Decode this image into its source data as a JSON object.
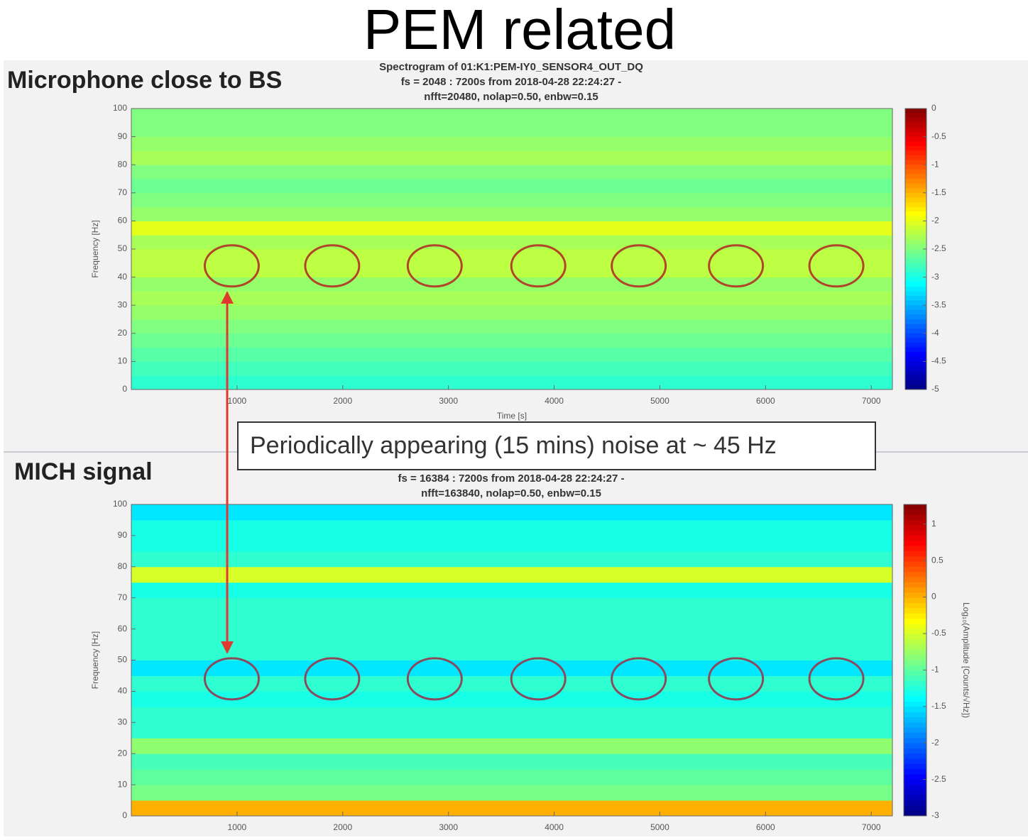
{
  "slide_title": "PEM related",
  "annotation": "Periodically appearing (15 mins) noise at ~ 45 Hz",
  "chart_data": [
    {
      "type": "heatmap",
      "panel_label": "Microphone close to BS",
      "title": [
        "Spectrogram of 01:K1:PEM-IY0_SENSOR4_OUT_DQ",
        "fs = 2048 : 7200s from 2018-04-28 22:24:27 -",
        "nfft=20480, nolap=0.50, enbw=0.15"
      ],
      "xlabel": "Time [s]",
      "ylabel": "Frequency [Hz]",
      "xlim": [
        0,
        7200
      ],
      "xticks": [
        1000,
        2000,
        3000,
        4000,
        5000,
        6000,
        7000
      ],
      "ylim": [
        0,
        100
      ],
      "yticks": [
        0,
        10,
        20,
        30,
        40,
        50,
        60,
        70,
        80,
        90,
        100
      ],
      "freq_bins": [
        0,
        5,
        10,
        15,
        20,
        25,
        30,
        35,
        40,
        45,
        50,
        55,
        60,
        65,
        70,
        75,
        80,
        85,
        90,
        95,
        100
      ],
      "values": [
        -2.9,
        -2.8,
        -2.7,
        -2.6,
        -2.5,
        -2.4,
        -2.3,
        -2.4,
        -2.2,
        -2.2,
        -2.3,
        -2.0,
        -2.4,
        -2.5,
        -2.6,
        -2.5,
        -2.3,
        -2.4,
        -2.5,
        -2.5
      ],
      "clim": [
        -5,
        0
      ],
      "cticks": [
        0,
        -0.5,
        -1,
        -1.5,
        -2,
        -2.5,
        -3,
        -3.5,
        -4,
        -4.5,
        -5
      ],
      "highlights": {
        "x": [
          950,
          1900,
          2870,
          3850,
          4800,
          5720,
          6670
        ],
        "y": 44,
        "color": "#b0452a"
      }
    },
    {
      "type": "heatmap",
      "panel_label": "MICH signal",
      "title": [
        "fs = 16384 : 7200s from 2018-04-28 22:24:27 -",
        "nfft=163840, nolap=0.50, enbw=0.15"
      ],
      "ylabel": "Frequency [Hz]",
      "clabel": "Log₁₀(Amplitude [Counts/√Hz])",
      "xlim": [
        0,
        7200
      ],
      "xticks": [
        1000,
        2000,
        3000,
        4000,
        5000,
        6000,
        7000
      ],
      "ylim": [
        0,
        100
      ],
      "yticks": [
        0,
        10,
        20,
        30,
        40,
        50,
        60,
        70,
        80,
        90,
        100
      ],
      "freq_bins": [
        0,
        5,
        10,
        15,
        20,
        25,
        30,
        35,
        40,
        45,
        50,
        55,
        60,
        65,
        70,
        75,
        80,
        85,
        90,
        95,
        100
      ],
      "values": [
        0.0,
        -0.9,
        -1.0,
        -1.1,
        -0.8,
        -1.2,
        -1.2,
        -1.3,
        -1.2,
        -1.5,
        -1.2,
        -1.2,
        -1.2,
        -1.2,
        -1.3,
        -0.5,
        -1.2,
        -1.3,
        -1.3,
        -1.5
      ],
      "clim": [
        -3,
        1.27
      ],
      "cticks": [
        1,
        0.5,
        0,
        -0.5,
        -1,
        -1.5,
        -2,
        -2.5,
        -3
      ],
      "highlights": {
        "x": [
          950,
          1900,
          2870,
          3850,
          4800,
          5720,
          6670
        ],
        "y": 44,
        "color": "#8a4a5e"
      }
    }
  ]
}
